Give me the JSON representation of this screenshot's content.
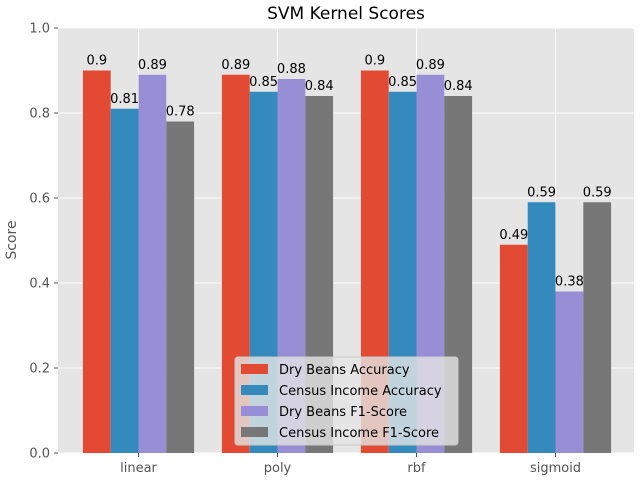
{
  "chart_data": {
    "type": "bar",
    "title": "SVM Kernel Scores",
    "xlabel": "",
    "ylabel": "Score",
    "ylim": [
      0,
      1.0
    ],
    "yticks": [
      "0.0",
      "0.2",
      "0.4",
      "0.6",
      "0.8",
      "1.0"
    ],
    "categories": [
      "linear",
      "poly",
      "rbf",
      "sigmoid"
    ],
    "grid": true,
    "legend_position": "bottom-center",
    "series": [
      {
        "name": "Dry Beans Accuracy",
        "color": "#E24A33",
        "values": [
          0.9,
          0.89,
          0.9,
          0.49
        ]
      },
      {
        "name": "Census Income Accuracy",
        "color": "#348ABD",
        "values": [
          0.81,
          0.85,
          0.85,
          0.59
        ]
      },
      {
        "name": "Dry Beans F1-Score",
        "color": "#988ED5",
        "values": [
          0.89,
          0.88,
          0.89,
          0.38
        ]
      },
      {
        "name": "Census Income F1-Score",
        "color": "#777777",
        "values": [
          0.78,
          0.84,
          0.84,
          0.59
        ]
      }
    ],
    "value_labels": [
      [
        "0.9",
        "0.89",
        "0.9",
        "0.49"
      ],
      [
        "0.81",
        "0.85",
        "0.85",
        "0.59"
      ],
      [
        "0.89",
        "0.88",
        "0.89",
        "0.38"
      ],
      [
        "0.78",
        "0.84",
        "0.84",
        "0.59"
      ]
    ]
  }
}
